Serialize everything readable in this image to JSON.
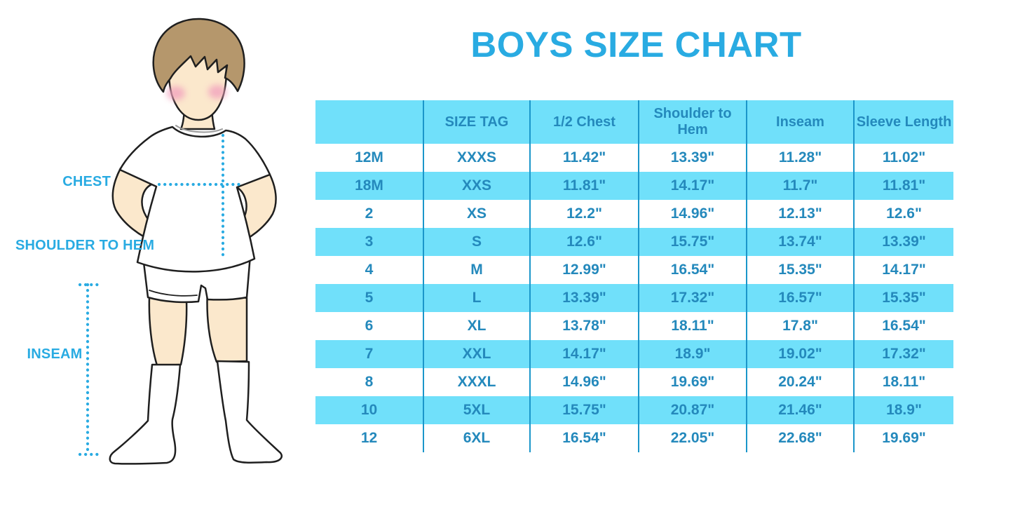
{
  "title": "BOYS SIZE CHART",
  "illustration": {
    "labels": {
      "chest": "CHEST",
      "shoulder_to_hem": "SHOULDER TO HEM",
      "inseam": "INSEAM"
    }
  },
  "colors": {
    "accent_blue": "#29ABE2",
    "row_blue": "#70E0FA",
    "divider_blue": "#1B96CA",
    "table_text_blue": "#2489BC",
    "hair_brown": "#B5976C",
    "skin": "#FBE8CC",
    "cheek_pink": "#F2A3BE",
    "outline": "#1F1F1F",
    "collar_gray": "#9B9B9B"
  },
  "chart_data": {
    "type": "table",
    "title": "BOYS SIZE CHART",
    "units": "inches",
    "columns": [
      "",
      "SIZE TAG",
      "1/2 Chest",
      "Shoulder to Hem",
      "Inseam",
      "Sleeve Length"
    ],
    "rows": [
      [
        "12M",
        "XXXS",
        "11.42\"",
        "13.39\"",
        "11.28\"",
        "11.02\""
      ],
      [
        "18M",
        "XXS",
        "11.81\"",
        "14.17\"",
        "11.7\"",
        "11.81\""
      ],
      [
        "2",
        "XS",
        "12.2\"",
        "14.96\"",
        "12.13\"",
        "12.6\""
      ],
      [
        "3",
        "S",
        "12.6\"",
        "15.75\"",
        "13.74\"",
        "13.39\""
      ],
      [
        "4",
        "M",
        "12.99\"",
        "16.54\"",
        "15.35\"",
        "14.17\""
      ],
      [
        "5",
        "L",
        "13.39\"",
        "17.32\"",
        "16.57\"",
        "15.35\""
      ],
      [
        "6",
        "XL",
        "13.78\"",
        "18.11\"",
        "17.8\"",
        "16.54\""
      ],
      [
        "7",
        "XXL",
        "14.17\"",
        "18.9\"",
        "19.02\"",
        "17.32\""
      ],
      [
        "8",
        "XXXL",
        "14.96\"",
        "19.69\"",
        "20.24\"",
        "18.11\""
      ],
      [
        "10",
        "5XL",
        "15.75\"",
        "20.87\"",
        "21.46\"",
        "18.9\""
      ],
      [
        "12",
        "6XL",
        "16.54\"",
        "22.05\"",
        "22.68\"",
        "19.69\""
      ]
    ],
    "style_note": "header row and alternating data rows (18M,3,5,7,10) filled light blue, others white; vertical blue column dividers only"
  }
}
